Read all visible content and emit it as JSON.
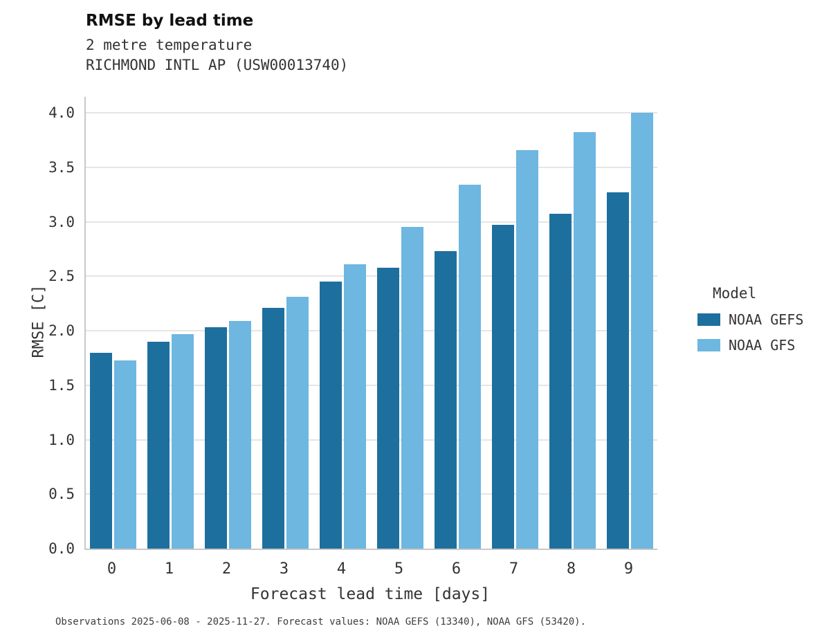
{
  "title": "RMSE by lead time",
  "subtitle1": "2 metre temperature",
  "subtitle2": "RICHMOND INTL AP (USW00013740)",
  "footer": "Observations 2025-06-08 - 2025-11-27. Forecast values: NOAA GEFS (13340), NOAA GFS (53420).",
  "legend": {
    "title": "Model",
    "position": "right"
  },
  "colors": {
    "gefs": "#1d6f9e",
    "gfs": "#6db7e0",
    "gridline": "#e5e5e5",
    "spine": "#c8c8c8"
  },
  "chart_data": {
    "type": "bar",
    "title": "RMSE by lead time",
    "subtitle": [
      "2 metre temperature",
      "RICHMOND INTL AP (USW00013740)"
    ],
    "categories": [
      "0",
      "1",
      "2",
      "3",
      "4",
      "5",
      "6",
      "7",
      "8",
      "9"
    ],
    "series": [
      {
        "name": "NOAA GEFS",
        "color": "#1d6f9e",
        "values": [
          1.8,
          1.9,
          2.03,
          2.21,
          2.45,
          2.58,
          2.73,
          2.97,
          3.07,
          3.27
        ]
      },
      {
        "name": "NOAA GFS",
        "color": "#6db7e0",
        "values": [
          1.73,
          1.97,
          2.09,
          2.31,
          2.61,
          2.95,
          3.34,
          3.66,
          3.82,
          4.0
        ]
      }
    ],
    "xlabel": "Forecast lead time [days]",
    "ylabel": "RMSE [C]",
    "ylim": [
      0,
      4.0
    ],
    "yticks": [
      0.0,
      0.5,
      1.0,
      1.5,
      2.0,
      2.5,
      3.0,
      3.5,
      4.0
    ],
    "grid": true,
    "legend_title": "Model",
    "legend_position": "right",
    "annotation": "Observations 2025-06-08 - 2025-11-27. Forecast values: NOAA GEFS (13340), NOAA GFS (53420)."
  }
}
